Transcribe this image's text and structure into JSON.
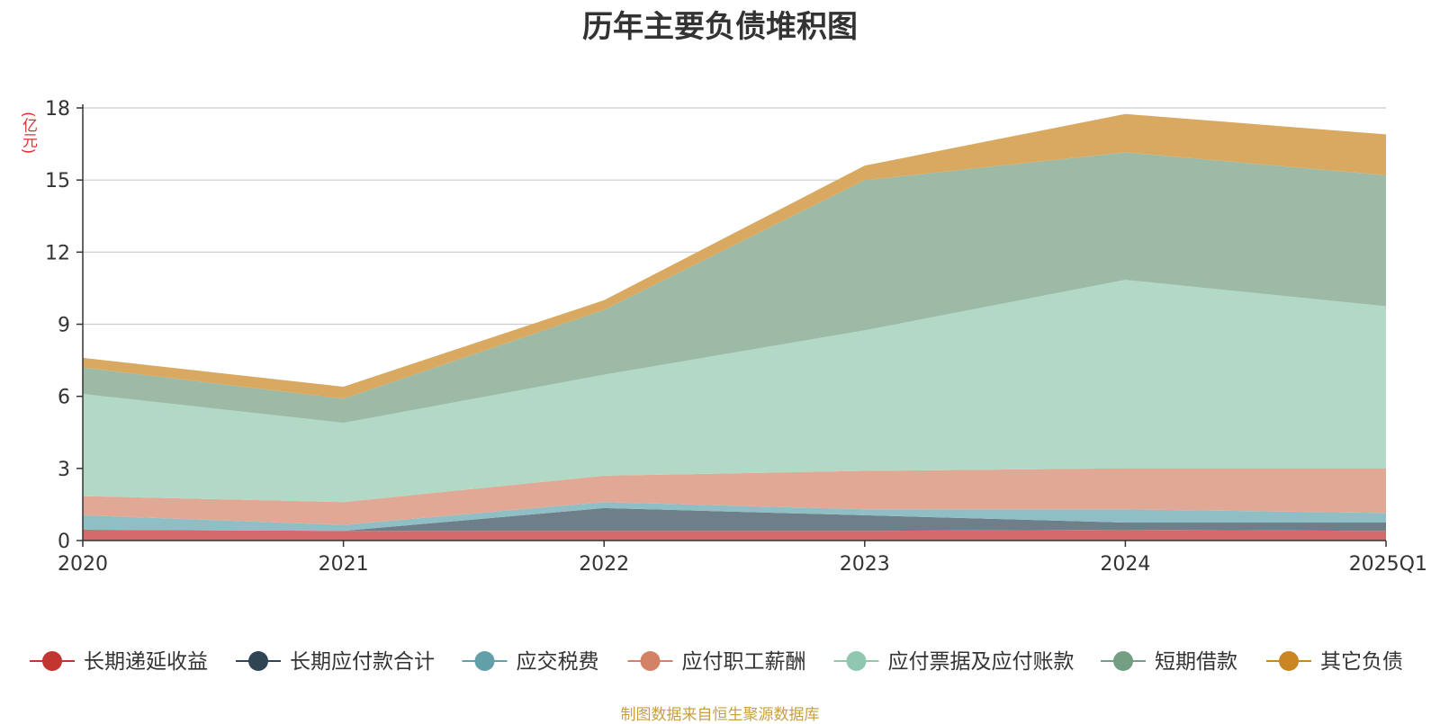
{
  "chart_data": {
    "type": "area",
    "stacked": true,
    "title": "历年主要负债堆积图",
    "unit": "(亿元)",
    "source": "制图数据来自恒生聚源数据库",
    "categories": [
      "2020",
      "2021",
      "2022",
      "2023",
      "2024",
      "2025Q1"
    ],
    "ylim": [
      0,
      18
    ],
    "yticks": [
      0,
      3,
      6,
      9,
      12,
      15,
      18
    ],
    "grid": true,
    "legend_position": "bottom",
    "series": [
      {
        "name": "长期递延收益",
        "color": "#c23531",
        "fill": "#d46a6a",
        "values": [
          0.45,
          0.4,
          0.4,
          0.4,
          0.45,
          0.4
        ]
      },
      {
        "name": "长期应付款合计",
        "color": "#2f4554",
        "fill": "#6e7f8a",
        "values": [
          0.0,
          0.0,
          0.95,
          0.65,
          0.3,
          0.35
        ]
      },
      {
        "name": "应交税费",
        "color": "#61a0a8",
        "fill": "#8fbfc4",
        "values": [
          0.6,
          0.25,
          0.25,
          0.25,
          0.55,
          0.4
        ]
      },
      {
        "name": "应付职工薪酬",
        "color": "#d48265",
        "fill": "#e2a896",
        "values": [
          0.8,
          0.95,
          1.1,
          1.6,
          1.7,
          1.85
        ]
      },
      {
        "name": "应付票据及应付账款",
        "color": "#91c7ae",
        "fill": "#b1d9c6",
        "values": [
          4.25,
          3.3,
          4.2,
          5.85,
          7.85,
          6.75
        ]
      },
      {
        "name": "短期借款",
        "color": "#749f83",
        "fill": "#9cbaa5",
        "values": [
          1.1,
          1.0,
          2.7,
          6.25,
          5.3,
          5.45
        ]
      },
      {
        "name": "其它负债",
        "color": "#ca8622",
        "fill": "#d9a961",
        "values": [
          0.4,
          0.5,
          0.4,
          0.6,
          1.6,
          1.7
        ]
      }
    ]
  }
}
